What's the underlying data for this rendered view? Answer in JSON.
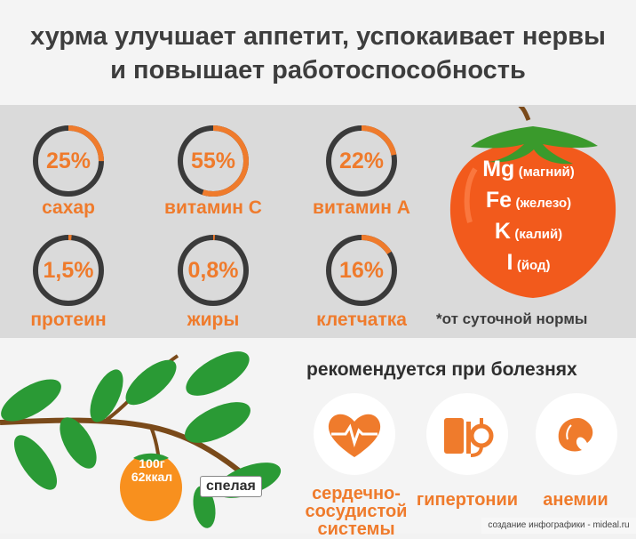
{
  "header": {
    "title_line1": "хурма улучшает аппетит, успокаивает нервы",
    "title_line2": "и повышает работоспособность"
  },
  "stats": [
    {
      "percent": "25%",
      "fraction": 0.25,
      "label": "сахар"
    },
    {
      "percent": "55%",
      "fraction": 0.55,
      "label": "витамин С"
    },
    {
      "percent": "22%",
      "fraction": 0.22,
      "label": "витамин А"
    },
    {
      "percent": "1,5%",
      "fraction": 0.015,
      "label": "протеин"
    },
    {
      "percent": "0,8%",
      "fraction": 0.008,
      "label": "жиры"
    },
    {
      "percent": "16%",
      "fraction": 0.16,
      "label": "клетчатка"
    }
  ],
  "minerals": [
    {
      "symbol": "Mg",
      "name": "(магний)"
    },
    {
      "symbol": "Fe",
      "name": "(железо)"
    },
    {
      "symbol": "K",
      "name": "(калий)"
    },
    {
      "symbol": "I",
      "name": "(йод)"
    }
  ],
  "note": "*от суточной нормы",
  "recommend": {
    "title": "рекомендуется при болезнях",
    "items": [
      {
        "line1": "сердечно-",
        "line2": "сосудистой",
        "line3": "системы",
        "icon": "heart-pulse-icon"
      },
      {
        "line1": "гипертонии",
        "icon": "blood-pressure-icon"
      },
      {
        "line1": "анемии",
        "icon": "blood-drop-icon"
      }
    ]
  },
  "branch": {
    "kcal_line1": "100г",
    "kcal_line2": "62ккал",
    "ripe_label": "спелая"
  },
  "credit": "создание инфографики - mideal.ru",
  "colors": {
    "accent": "#ef7b2c",
    "fruit": "#f25a1c",
    "leaf": "#2a9a35",
    "ring": "#3a3a3a"
  }
}
